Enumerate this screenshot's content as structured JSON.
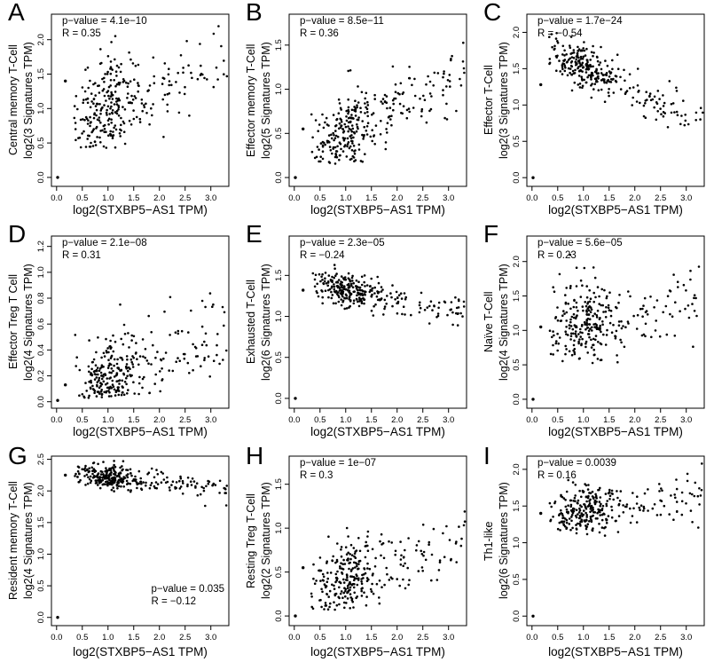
{
  "colors": {
    "background": "#ffffff",
    "points": "#000000",
    "text": "#000000",
    "axis": "#000000"
  },
  "chart_data": [
    {
      "panel": "A",
      "type": "scatter",
      "ylabel_line1": "Central memory T-Cell",
      "ylabel_line2": "log2(3 Signatures TPM)",
      "xlabel": "log2(STXBP5−AS1 TPM)",
      "annotation": {
        "p_value": "p−value = 4.1e−10",
        "r": "R = 0.35",
        "position": "top-left"
      },
      "stats": {
        "p_value": "4.1e-10",
        "R": 0.35
      },
      "x_ticks": [
        "0.0",
        "0.5",
        "1.0",
        "1.5",
        "2.0",
        "2.5",
        "3.0"
      ],
      "y_ticks": [
        "0.0",
        "0.5",
        "1.0",
        "1.5",
        "2.0"
      ],
      "xlim": [
        -0.1,
        3.35
      ],
      "ylim": [
        -0.13,
        2.37
      ],
      "n_points": 300,
      "points_model": {
        "seed": 11,
        "n": 298,
        "cluster": {
          "frac": 0.6,
          "mean": 0.95,
          "sd": 0.3
        },
        "spread": {
          "min": 1.05,
          "max": 3.32,
          "pow": 1.35
        },
        "trend": {
          "intercept": 0.72,
          "slope": 0.29,
          "sd": 0.3
        },
        "y_clamp": [
          0.43,
          2.33
        ]
      },
      "fixed_points": [
        [
          0.02,
          0
        ],
        [
          0.17,
          1.4
        ]
      ]
    },
    {
      "panel": "B",
      "type": "scatter",
      "ylabel_line1": "Effector memory T-Cell",
      "ylabel_line2": "log2(5 Signatures TPM)",
      "xlabel": "log2(STXBP5−AS1 TPM)",
      "annotation": {
        "p_value": "p−value = 8.5e−11",
        "r": "R = 0.36",
        "position": "top-left"
      },
      "stats": {
        "p_value": "8.5e-11",
        "R": 0.36
      },
      "x_ticks": [
        "0.0",
        "0.5",
        "1.0",
        "1.5",
        "2.0",
        "2.5",
        "3.0"
      ],
      "y_ticks": [
        "0.0",
        "0.5",
        "1.0",
        "1.5"
      ],
      "xlim": [
        -0.1,
        3.35
      ],
      "ylim": [
        -0.1,
        1.85
      ],
      "n_points": 300,
      "points_model": {
        "seed": 22,
        "n": 298,
        "cluster": {
          "frac": 0.6,
          "mean": 0.95,
          "sd": 0.3
        },
        "spread": {
          "min": 1.05,
          "max": 3.32,
          "pow": 1.35
        },
        "trend": {
          "intercept": 0.25,
          "slope": 0.28,
          "sd": 0.2
        },
        "y_clamp": [
          0.15,
          1.55
        ]
      },
      "fixed_points": [
        [
          0.02,
          0
        ],
        [
          0.17,
          0.55
        ]
      ]
    },
    {
      "panel": "C",
      "type": "scatter",
      "ylabel_line1": "Effector T-Cell",
      "ylabel_line2": "log2(3 Signatures TPM)",
      "xlabel": "log2(STXBP5−AS1 TPM)",
      "annotation": {
        "p_value": "p−value = 1.7e−24",
        "r": "R = −0.54",
        "position": "top-left"
      },
      "stats": {
        "p_value": "1.7e-24",
        "R": -0.54
      },
      "x_ticks": [
        "0.0",
        "0.5",
        "1.0",
        "1.5",
        "2.0",
        "2.5",
        "3.0"
      ],
      "y_ticks": [
        "0.0",
        "0.5",
        "1.0",
        "1.5",
        "2.0"
      ],
      "xlim": [
        -0.1,
        3.35
      ],
      "ylim": [
        -0.12,
        2.25
      ],
      "n_points": 300,
      "points_model": {
        "seed": 33,
        "n": 298,
        "cluster": {
          "frac": 0.6,
          "mean": 0.95,
          "sd": 0.3
        },
        "spread": {
          "min": 1.05,
          "max": 3.32,
          "pow": 1.35
        },
        "trend": {
          "intercept": 1.88,
          "slope": -0.35,
          "sd": 0.15
        },
        "y_clamp": [
          0.44,
          2.05
        ]
      },
      "fixed_points": [
        [
          0.02,
          0
        ],
        [
          0.17,
          1.28
        ]
      ]
    },
    {
      "panel": "D",
      "type": "scatter",
      "ylabel_line1": "Effector Treg T Cell",
      "ylabel_line2": "log2(4 Signatures TPM)",
      "xlabel": "log2(STXBP5−AS1 TPM)",
      "annotation": {
        "p_value": "p−value = 2.1e−08",
        "r": "R = 0.31",
        "position": "top-left"
      },
      "stats": {
        "p_value": "2.1e-08",
        "R": 0.31
      },
      "x_ticks": [
        "0.0",
        "0.5",
        "1.0",
        "1.5",
        "2.0",
        "2.5",
        "3.0"
      ],
      "y_ticks": [
        "0.0",
        "0.2",
        "0.4",
        "0.6",
        "0.8",
        "1.0",
        "1.2"
      ],
      "xlim": [
        -0.1,
        3.35
      ],
      "ylim": [
        -0.05,
        1.28
      ],
      "n_points": 300,
      "points_model": {
        "seed": 44,
        "n": 298,
        "cluster": {
          "frac": 0.6,
          "mean": 0.95,
          "sd": 0.3
        },
        "spread": {
          "min": 1.05,
          "max": 3.32,
          "pow": 1.35
        },
        "trend": {
          "intercept": 0.03,
          "slope": 0.16,
          "sd": 0.16
        },
        "y_clamp": [
          0.03,
          1.08
        ]
      },
      "fixed_points": [
        [
          0.02,
          0.01
        ],
        [
          0.17,
          0.13
        ]
      ]
    },
    {
      "panel": "E",
      "type": "scatter",
      "ylabel_line1": "Exhausted T-Cell",
      "ylabel_line2": "log2(6 Signatures TPM)",
      "xlabel": "log2(STXBP5−AS1 TPM)",
      "annotation": {
        "p_value": "p−value = 2.3e−05",
        "r": "R = −0.24",
        "position": "top-left"
      },
      "stats": {
        "p_value": "2.3e-05",
        "R": -0.24
      },
      "x_ticks": [
        "0.0",
        "0.5",
        "1.0",
        "1.5",
        "2.0",
        "2.5",
        "3.0"
      ],
      "y_ticks": [
        "0.0",
        "0.5",
        "1.0",
        "1.5"
      ],
      "xlim": [
        -0.1,
        3.35
      ],
      "ylim": [
        -0.12,
        1.98
      ],
      "n_points": 300,
      "points_model": {
        "seed": 55,
        "n": 298,
        "cluster": {
          "frac": 0.6,
          "mean": 0.95,
          "sd": 0.3
        },
        "spread": {
          "min": 1.05,
          "max": 3.32,
          "pow": 1.35
        },
        "trend": {
          "intercept": 1.47,
          "slope": -0.13,
          "sd": 0.1
        },
        "y_clamp": [
          0.52,
          1.92
        ]
      },
      "fixed_points": [
        [
          0.02,
          0
        ],
        [
          0.17,
          1.32
        ]
      ]
    },
    {
      "panel": "F",
      "type": "scatter",
      "ylabel_line1": "Naïve T-Cell",
      "ylabel_line2": "log2(4 Signatures TPM)",
      "xlabel": "log2(STXBP5−AS1 TPM)",
      "annotation": {
        "p_value": "p−value = 5.6e−05",
        "r": "R = 0.23",
        "position": "top-left"
      },
      "stats": {
        "p_value": "5.6e-05",
        "R": 0.23
      },
      "x_ticks": [
        "0.0",
        "0.5",
        "1.0",
        "1.5",
        "2.0",
        "2.5",
        "3.0"
      ],
      "y_ticks": [
        "0.0",
        "0.5",
        "1.0",
        "1.5",
        "2.0"
      ],
      "xlim": [
        -0.1,
        3.35
      ],
      "ylim": [
        -0.13,
        2.37
      ],
      "n_points": 300,
      "points_model": {
        "seed": 66,
        "n": 298,
        "cluster": {
          "frac": 0.6,
          "mean": 0.95,
          "sd": 0.3
        },
        "spread": {
          "min": 1.05,
          "max": 3.32,
          "pow": 1.35
        },
        "trend": {
          "intercept": 0.95,
          "slope": 0.16,
          "sd": 0.27
        },
        "y_clamp": [
          0.48,
          2.3
        ]
      },
      "fixed_points": [
        [
          0.02,
          0
        ],
        [
          0.17,
          1.05
        ]
      ]
    },
    {
      "panel": "G",
      "type": "scatter",
      "ylabel_line1": "Resident memory T-Cell",
      "ylabel_line2": "log2(4 Signatures TPM)",
      "xlabel": "log2(STXBP5−AS1 TPM)",
      "annotation": {
        "p_value": "p−value = 0.035",
        "r": "R = −0.12",
        "position": "bottom-right"
      },
      "stats": {
        "p_value": "0.035",
        "R": -0.12
      },
      "x_ticks": [
        "0.0",
        "0.5",
        "1.0",
        "1.5",
        "2.0",
        "2.5",
        "3.0"
      ],
      "y_ticks": [
        "0.0",
        "0.5",
        "1.0",
        "1.5",
        "2.0",
        "2.5"
      ],
      "xlim": [
        -0.1,
        3.35
      ],
      "ylim": [
        -0.13,
        2.55
      ],
      "n_points": 300,
      "points_model": {
        "seed": 77,
        "n": 298,
        "cluster": {
          "frac": 0.6,
          "mean": 0.95,
          "sd": 0.3
        },
        "spread": {
          "min": 1.05,
          "max": 3.32,
          "pow": 1.35
        },
        "trend": {
          "intercept": 2.28,
          "slope": -0.065,
          "sd": 0.09
        },
        "y_clamp": [
          1.76,
          2.49
        ]
      },
      "fixed_points": [
        [
          0.02,
          0
        ],
        [
          0.17,
          2.25
        ]
      ]
    },
    {
      "panel": "H",
      "type": "scatter",
      "ylabel_line1": "Resting Treg T-Cell",
      "ylabel_line2": "log2(2 Signatures TPM)",
      "xlabel": "log2(STXBP5−AS1 TPM)",
      "annotation": {
        "p_value": "p−value = 1e−07",
        "r": "R = 0.3",
        "position": "top-left"
      },
      "stats": {
        "p_value": "1e-07",
        "R": 0.3
      },
      "x_ticks": [
        "0.0",
        "0.5",
        "1.0",
        "1.5",
        "2.0",
        "2.5",
        "3.0"
      ],
      "y_ticks": [
        "0.0",
        "0.5",
        "1.0",
        "1.5"
      ],
      "xlim": [
        -0.1,
        3.35
      ],
      "ylim": [
        -0.11,
        1.82
      ],
      "n_points": 300,
      "points_model": {
        "seed": 88,
        "n": 298,
        "cluster": {
          "frac": 0.6,
          "mean": 0.95,
          "sd": 0.3
        },
        "spread": {
          "min": 1.05,
          "max": 3.32,
          "pow": 1.35
        },
        "trend": {
          "intercept": 0.22,
          "slope": 0.21,
          "sd": 0.23
        },
        "y_clamp": [
          0.07,
          1.68
        ]
      },
      "fixed_points": [
        [
          0.02,
          0
        ],
        [
          0.17,
          0.55
        ]
      ]
    },
    {
      "panel": "I",
      "type": "scatter",
      "ylabel_line1": "Th1-like",
      "ylabel_line2": "log2(6 Signatures TPM)",
      "xlabel": "log2(STXBP5−AS1 TPM)",
      "annotation": {
        "p_value": "p−value = 0.0039",
        "r": "R = 0.16",
        "position": "top-left"
      },
      "stats": {
        "p_value": "0.0039",
        "R": 0.16
      },
      "x_ticks": [
        "0.0",
        "0.5",
        "1.0",
        "1.5",
        "2.0",
        "2.5",
        "3.0"
      ],
      "y_ticks": [
        "0.0",
        "0.5",
        "1.0",
        "1.5",
        "2.0"
      ],
      "xlim": [
        -0.1,
        3.35
      ],
      "ylim": [
        -0.13,
        2.18
      ],
      "n_points": 300,
      "points_model": {
        "seed": 99,
        "n": 298,
        "cluster": {
          "frac": 0.6,
          "mean": 0.95,
          "sd": 0.3
        },
        "spread": {
          "min": 1.05,
          "max": 3.32,
          "pow": 1.35
        },
        "trend": {
          "intercept": 1.39,
          "slope": 0.065,
          "sd": 0.16
        },
        "y_clamp": [
          1.02,
          2.08
        ]
      },
      "fixed_points": [
        [
          0.02,
          0
        ],
        [
          0.17,
          1.4
        ]
      ]
    }
  ]
}
